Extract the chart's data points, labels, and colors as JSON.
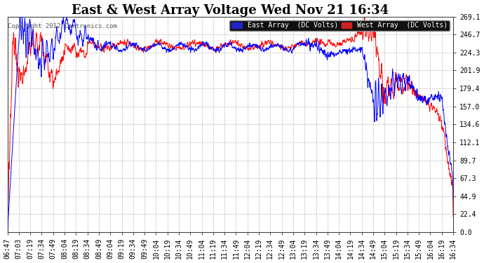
{
  "title": "East & West Array Voltage Wed Nov 21 16:34",
  "copyright": "Copyright 2012 Cartronics.com",
  "east_label": "East Array  (DC Volts)",
  "west_label": "West Array  (DC Volts)",
  "east_color": "#0000ff",
  "west_color": "#ff0000",
  "background_color": "#ffffff",
  "plot_bg": "#ffffff",
  "grid_color": "#bbbbbb",
  "ylim": [
    0.0,
    269.1
  ],
  "yticks": [
    0.0,
    22.4,
    44.9,
    67.3,
    89.7,
    112.1,
    134.6,
    157.0,
    179.4,
    201.9,
    224.3,
    246.7,
    269.1
  ],
  "xtick_labels": [
    "06:47",
    "07:03",
    "07:19",
    "07:34",
    "07:49",
    "08:04",
    "08:19",
    "08:34",
    "08:49",
    "09:04",
    "09:19",
    "09:34",
    "09:49",
    "10:04",
    "10:19",
    "10:34",
    "10:49",
    "11:04",
    "11:19",
    "11:34",
    "11:49",
    "12:04",
    "12:19",
    "12:34",
    "12:49",
    "13:04",
    "13:19",
    "13:34",
    "13:49",
    "14:04",
    "14:19",
    "14:34",
    "14:49",
    "15:04",
    "15:19",
    "15:34",
    "15:49",
    "16:04",
    "16:19",
    "16:34"
  ],
  "title_fontsize": 13,
  "tick_fontsize": 7,
  "label_fontsize": 8
}
